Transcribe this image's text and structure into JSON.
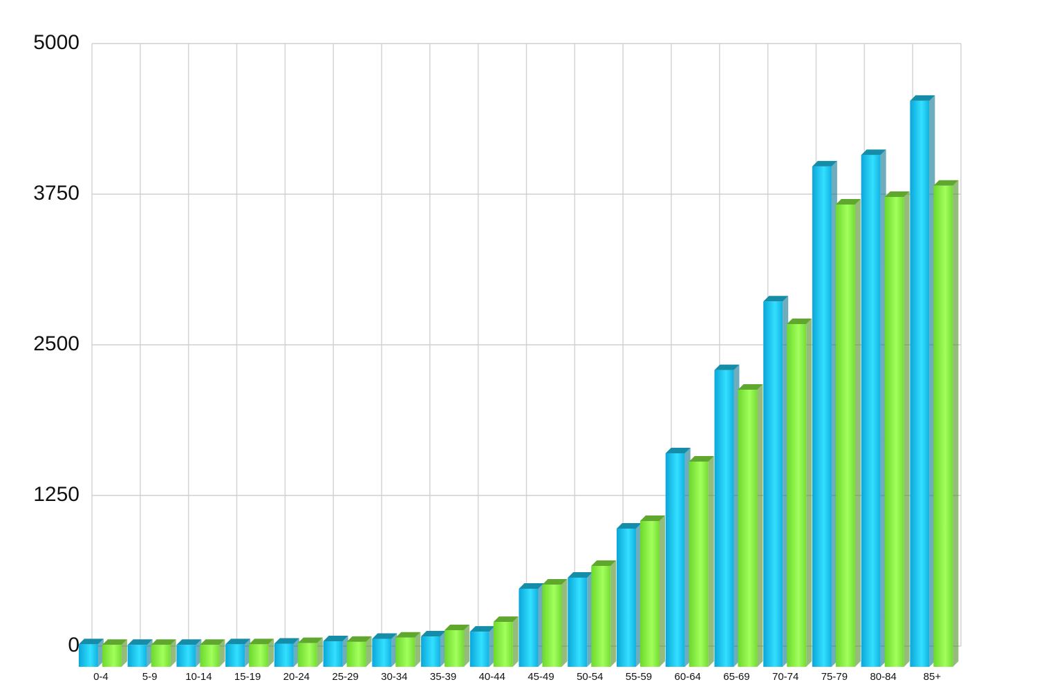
{
  "chart_data": {
    "type": "bar3d",
    "categories": [
      "0-4",
      "5-9",
      "10-14",
      "15-19",
      "20-24",
      "25-29",
      "30-34",
      "35-39",
      "40-44",
      "45-49",
      "50-54",
      "55-59",
      "60-64",
      "65-69",
      "70-74",
      "75-79",
      "80-84",
      "85+"
    ],
    "series": [
      {
        "color": "#1ec8f0",
        "values": [
          15,
          10,
          10,
          15,
          20,
          40,
          60,
          80,
          120,
          476,
          568,
          975,
          1600,
          2290,
          2860,
          3980,
          4075,
          4525
        ]
      },
      {
        "color": "#88f040",
        "values": [
          10,
          10,
          10,
          15,
          25,
          35,
          70,
          132,
          200,
          510,
          665,
          1038,
          1531,
          2127,
          2672,
          3664,
          3727,
          3820
        ]
      }
    ],
    "ylim": [
      0,
      5000
    ],
    "yticks": [
      0,
      1250,
      2500,
      3750,
      5000
    ],
    "grid": true
  }
}
